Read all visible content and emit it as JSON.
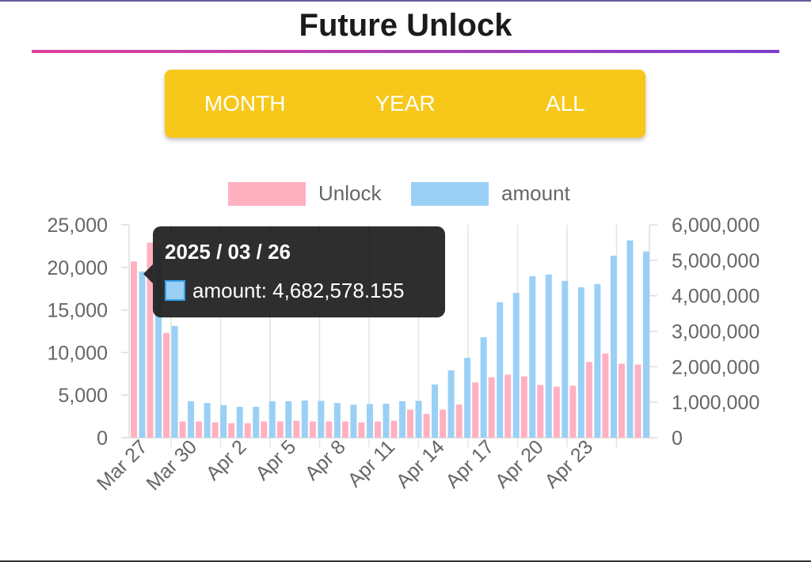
{
  "header": {
    "title": "Future Unlock"
  },
  "tabs": [
    {
      "label": "MONTH"
    },
    {
      "label": "YEAR"
    },
    {
      "label": "ALL"
    }
  ],
  "colors": {
    "unlock": "#ffb1c1",
    "amount": "#9ad0f5",
    "accent": "#f7c81a"
  },
  "tooltip": {
    "title": "2025 / 03 / 26",
    "label": "amount: 4,682,578.155"
  },
  "chart_data": {
    "type": "bar",
    "legend": [
      "Unlock",
      "amount"
    ],
    "legend_position": "top",
    "x_tick_labels": [
      "Mar 27",
      "Mar 30",
      "Apr 2",
      "Apr 5",
      "Apr 8",
      "Apr 11",
      "Apr 14",
      "Apr 17",
      "Apr 20",
      "Apr 23"
    ],
    "y_left_ticks": [
      "0",
      "5,000",
      "10,000",
      "15,000",
      "20,000",
      "25,000"
    ],
    "y_right_ticks": [
      "0",
      "1,000,000",
      "2,000,000",
      "3,000,000",
      "4,000,000",
      "5,000,000",
      "6,000,000"
    ],
    "y_left_range": [
      0,
      25000
    ],
    "y_right_range": [
      0,
      6000000
    ],
    "series": [
      {
        "name": "Unlock",
        "axis": "left",
        "values": [
          20700,
          22900,
          12300,
          1900,
          1900,
          1800,
          1700,
          1700,
          1900,
          1900,
          2000,
          1900,
          1900,
          1900,
          1800,
          1900,
          2000,
          3300,
          2800,
          3300,
          3900,
          6500,
          7100,
          7400,
          7200,
          6200,
          6000,
          6100,
          8900,
          9900,
          8700,
          8600
        ]
      },
      {
        "name": "amount",
        "axis": "right",
        "values": [
          4682578,
          5300000,
          3150000,
          1030000,
          980000,
          920000,
          870000,
          870000,
          1030000,
          1030000,
          1050000,
          1040000,
          980000,
          930000,
          950000,
          960000,
          1030000,
          1040000,
          1500000,
          1900000,
          2250000,
          2830000,
          3820000,
          4080000,
          4550000,
          4600000,
          4420000,
          4240000,
          4330000,
          5130000,
          5560000,
          5250000
        ]
      }
    ]
  }
}
